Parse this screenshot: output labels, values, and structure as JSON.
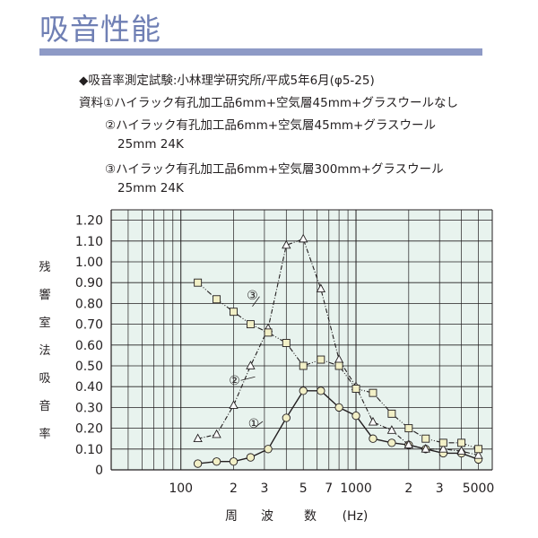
{
  "title": "吸音性能",
  "notes": {
    "test": "◆吸音率測定試験:小林理学研究所/平成5年6月(φ5-25)",
    "material1": "資料①ハイラック有孔加工品6mm+空気層45mm+グラスウールなし",
    "material2": "②ハイラック有孔加工品6mm+空気層45mm+グラスウール",
    "material2_spec": "25mm 24K",
    "material3": "③ハイラック有孔加工品6mm+空気層300mm+グラスウール",
    "material3_spec": "25mm 24K"
  },
  "chart_data": {
    "type": "line",
    "title": "",
    "ylabel": "残響室法吸音率",
    "xlabel": "周 波 数 (Hz)",
    "xlabel_parts": [
      "周",
      "波",
      "数",
      "(Hz)"
    ],
    "xscale": "log",
    "xlim": [
      40,
      6000
    ],
    "ylim": [
      0,
      1.25
    ],
    "grid": true,
    "yticks": [
      0,
      0.1,
      0.2,
      0.3,
      0.4,
      0.5,
      0.6,
      0.7,
      0.8,
      0.9,
      1.0,
      1.1,
      1.2
    ],
    "ytick_labels": [
      "0",
      "0.10",
      "0.20",
      "0.30",
      "0.40",
      "0.50",
      "0.60",
      "0.70",
      "0.80",
      "0.90",
      "1.00",
      "1.10",
      "1.20"
    ],
    "xtick_labels": [
      {
        "value": 100,
        "label": "100"
      },
      {
        "value": 200,
        "label": "2"
      },
      {
        "value": 300,
        "label": "3"
      },
      {
        "value": 500,
        "label": "5"
      },
      {
        "value": 700,
        "label": "7"
      },
      {
        "value": 1000,
        "label": "1000"
      },
      {
        "value": 2000,
        "label": "2"
      },
      {
        "value": 3000,
        "label": "3"
      },
      {
        "value": 5000,
        "label": "5000"
      }
    ],
    "x": [
      125,
      160,
      200,
      250,
      315,
      400,
      500,
      630,
      800,
      1000,
      1250,
      1600,
      2000,
      2500,
      3150,
      4000,
      5000
    ],
    "series": [
      {
        "name": "①",
        "marker": "circle",
        "values": [
          0.03,
          0.04,
          0.04,
          0.06,
          0.1,
          0.25,
          0.38,
          0.38,
          0.3,
          0.26,
          0.15,
          0.13,
          0.12,
          0.1,
          0.08,
          0.08,
          0.05
        ]
      },
      {
        "name": "②",
        "marker": "triangle",
        "values": [
          0.15,
          0.17,
          0.31,
          0.5,
          0.68,
          1.08,
          1.11,
          0.87,
          0.53,
          0.4,
          0.23,
          0.19,
          0.12,
          0.1,
          0.1,
          0.09,
          0.07
        ]
      },
      {
        "name": "③",
        "marker": "square",
        "values": [
          0.9,
          0.82,
          0.76,
          0.7,
          0.66,
          0.61,
          0.5,
          0.53,
          0.5,
          0.39,
          0.37,
          0.27,
          0.2,
          0.15,
          0.13,
          0.13,
          0.1
        ]
      }
    ],
    "annotations": [
      {
        "label": "①",
        "series": 0,
        "x": 315,
        "y": 0.25
      },
      {
        "label": "②",
        "series": 1,
        "x": 200,
        "y": 0.43
      },
      {
        "label": "③",
        "series": 2,
        "x": 250,
        "y": 0.82
      }
    ],
    "ylabel_chars": [
      "残",
      "響",
      "室",
      "法",
      "吸",
      "音",
      "率"
    ]
  }
}
